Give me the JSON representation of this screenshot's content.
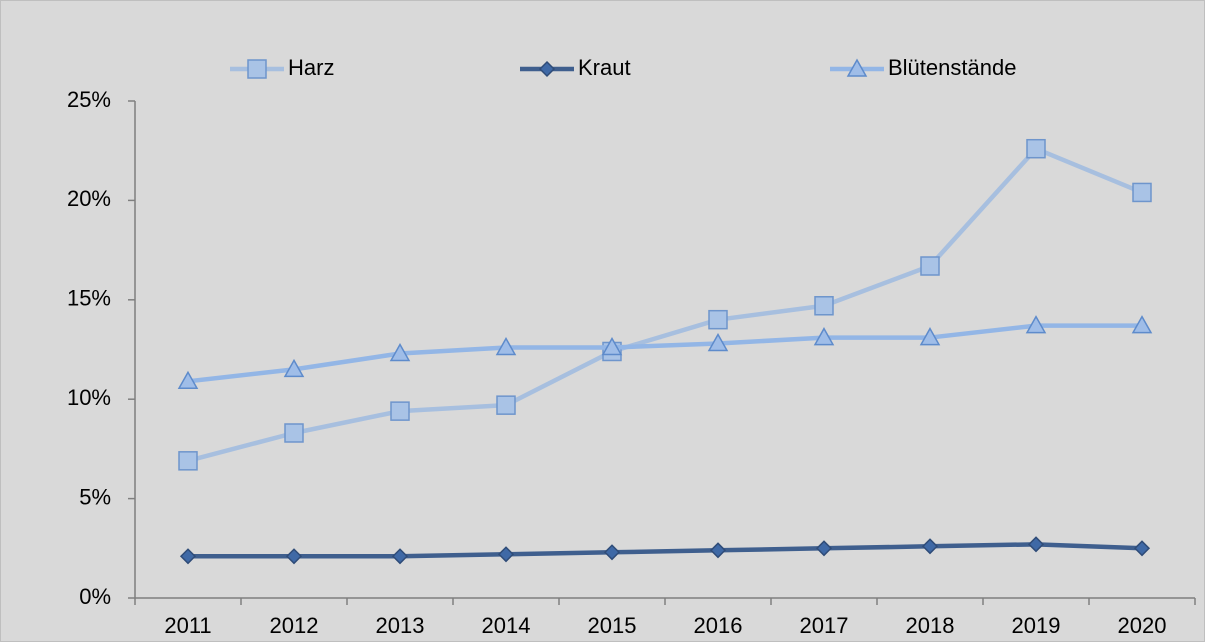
{
  "chart_data": {
    "type": "line",
    "categories": [
      "2011",
      "2012",
      "2013",
      "2014",
      "2015",
      "2016",
      "2017",
      "2018",
      "2019",
      "2020"
    ],
    "series": [
      {
        "name": "Harz",
        "color": "#a7bfdf",
        "marker": "square",
        "marker_color": "#a9c3e6",
        "marker_edge": "#6e95cc",
        "values": [
          6.9,
          8.3,
          9.4,
          9.7,
          12.4,
          14.0,
          14.7,
          16.7,
          22.6,
          20.4
        ]
      },
      {
        "name": "Kraut",
        "color": "#3f5f8e",
        "marker": "diamond",
        "marker_color": "#3f69a6",
        "marker_edge": "#2f4c78",
        "values": [
          2.1,
          2.1,
          2.1,
          2.2,
          2.3,
          2.4,
          2.5,
          2.6,
          2.7,
          2.5
        ]
      },
      {
        "name": "Blütenstände",
        "color": "#93b6e6",
        "marker": "triangle",
        "marker_color": "#9fbde8",
        "marker_edge": "#5e8bcb",
        "values": [
          10.9,
          11.5,
          12.3,
          12.6,
          12.6,
          12.8,
          13.1,
          13.1,
          13.7,
          13.7
        ]
      }
    ],
    "ylim": [
      0,
      25
    ],
    "yticks": [
      {
        "value": 0,
        "label": "0%"
      },
      {
        "value": 5,
        "label": "5%"
      },
      {
        "value": 10,
        "label": "10%"
      },
      {
        "value": 15,
        "label": "15%"
      },
      {
        "value": 20,
        "label": "20%"
      },
      {
        "value": 25,
        "label": "25%"
      }
    ],
    "legend": "top"
  }
}
